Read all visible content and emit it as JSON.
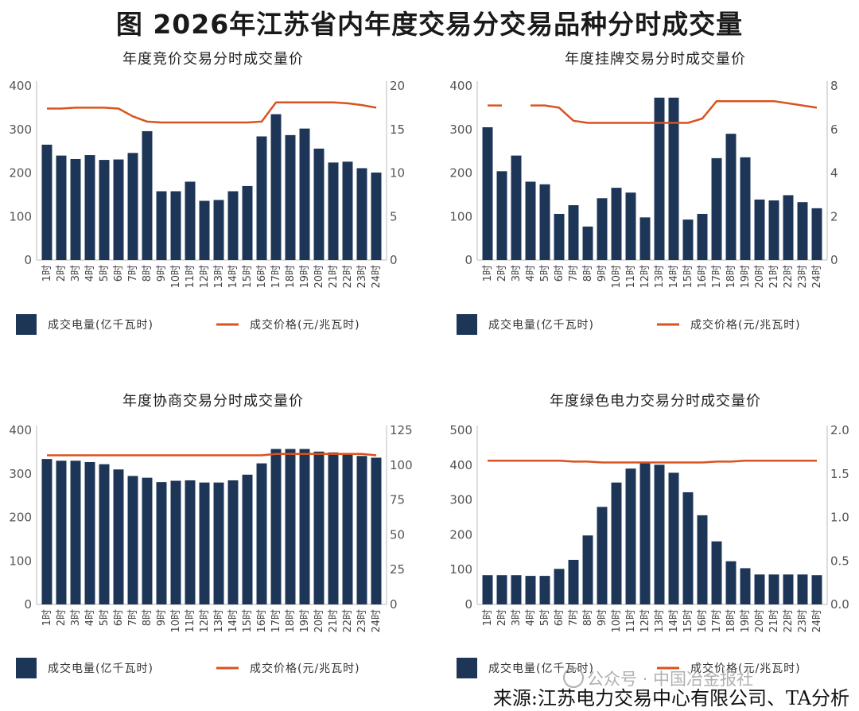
{
  "page": {
    "title": "图  2026年江苏省内年度交易分交易品种分时成交量",
    "source": "来源:江苏电力交易中心有限公司、TA分析",
    "watermark": "公众号 · 中国冶金报社"
  },
  "colors": {
    "bar": "#1d3557",
    "line": "#d9531e",
    "axis": "#bbbbbb",
    "tick": "#555555"
  },
  "legend": {
    "bar_label": "成交电量(亿千瓦时)",
    "line_label": "成交价格(元/兆瓦时)"
  },
  "chart_data": [
    {
      "type": "bar+line",
      "title": "年度竞价交易分时成交量价",
      "categories": [
        "1时",
        "2时",
        "3时",
        "4时",
        "5时",
        "6时",
        "7时",
        "8时",
        "9时",
        "10时",
        "11时",
        "12时",
        "13时",
        "14时",
        "15时",
        "16时",
        "17时",
        "18时",
        "19时",
        "20时",
        "21时",
        "22时",
        "23时",
        "24时"
      ],
      "left_axis": {
        "ylim": [
          0,
          400
        ],
        "ticks": [
          "0",
          "100",
          "200",
          "300",
          "400"
        ]
      },
      "right_axis": {
        "ylim": [
          0,
          20
        ],
        "ticks": [
          "0",
          "5",
          "10",
          "15",
          "20"
        ]
      },
      "series": [
        {
          "name": "成交电量(亿千瓦时)",
          "type": "bar",
          "axis": "left",
          "values": [
            265,
            240,
            232,
            241,
            230,
            231,
            246,
            296,
            158,
            158,
            180,
            136,
            138,
            158,
            170,
            284,
            335,
            287,
            302,
            256,
            224,
            226,
            211,
            201
          ]
        },
        {
          "name": "成交价格(元/兆瓦时)",
          "type": "line",
          "axis": "right",
          "values": [
            17.4,
            17.4,
            17.5,
            17.5,
            17.5,
            17.4,
            16.5,
            15.9,
            15.8,
            15.8,
            15.8,
            15.8,
            15.8,
            15.8,
            15.8,
            15.9,
            18.1,
            18.1,
            18.1,
            18.1,
            18.1,
            18.0,
            17.8,
            17.5
          ]
        }
      ]
    },
    {
      "type": "bar+line",
      "title": "年度挂牌交易分时成交量价",
      "categories": [
        "1时",
        "2时",
        "3时",
        "4时",
        "5时",
        "6时",
        "7时",
        "8时",
        "9时",
        "10时",
        "11时",
        "12时",
        "13时",
        "14时",
        "15时",
        "16时",
        "17时",
        "18时",
        "19时",
        "20时",
        "21时",
        "22时",
        "23时",
        "24时"
      ],
      "left_axis": {
        "ylim": [
          0,
          400
        ],
        "ticks": [
          "0",
          "100",
          "200",
          "300",
          "400"
        ]
      },
      "right_axis": {
        "ylim": [
          0,
          8
        ],
        "ticks": [
          "0",
          "2",
          "4",
          "6",
          "8"
        ]
      },
      "series": [
        {
          "name": "成交电量(亿千瓦时)",
          "type": "bar",
          "axis": "left",
          "values": [
            305,
            204,
            240,
            180,
            174,
            106,
            126,
            77,
            142,
            166,
            155,
            98,
            373,
            373,
            93,
            106,
            234,
            290,
            236,
            139,
            137,
            149,
            133,
            119
          ]
        },
        {
          "name": "成交价格(元/兆瓦时)",
          "type": "line",
          "axis": "right",
          "values": [
            7.1,
            7.1,
            null,
            7.1,
            7.1,
            7.0,
            6.4,
            6.3,
            6.3,
            6.3,
            6.3,
            6.3,
            6.3,
            6.3,
            6.3,
            6.5,
            7.3,
            7.3,
            7.3,
            7.3,
            7.3,
            7.2,
            7.1,
            7.0
          ]
        }
      ]
    },
    {
      "type": "bar+line",
      "title": "年度协商交易分时成交量价",
      "categories": [
        "1时",
        "2时",
        "3时",
        "4时",
        "5时",
        "6时",
        "7时",
        "8时",
        "9时",
        "10时",
        "11时",
        "12时",
        "13时",
        "14时",
        "15时",
        "16时",
        "17时",
        "18时",
        "19时",
        "20时",
        "21时",
        "22时",
        "23时",
        "24时"
      ],
      "left_axis": {
        "ylim": [
          0,
          400
        ],
        "ticks": [
          "0",
          "100",
          "200",
          "300",
          "400"
        ]
      },
      "right_axis": {
        "ylim": [
          0,
          125
        ],
        "ticks": [
          "0",
          "25",
          "50",
          "75",
          "100",
          "125"
        ]
      },
      "series": [
        {
          "name": "成交电量(亿千瓦时)",
          "type": "bar",
          "axis": "left",
          "values": [
            334,
            330,
            330,
            327,
            322,
            310,
            295,
            291,
            281,
            284,
            285,
            280,
            280,
            285,
            298,
            324,
            357,
            357,
            357,
            351,
            349,
            346,
            341,
            337
          ]
        },
        {
          "name": "成交价格(元/兆瓦时)",
          "type": "line",
          "axis": "right",
          "values": [
            107,
            107,
            107,
            107,
            107,
            107,
            107,
            107,
            107,
            107,
            107,
            107,
            107,
            107,
            107,
            107,
            108,
            108,
            108,
            108,
            108,
            108,
            108,
            107
          ]
        }
      ]
    },
    {
      "type": "bar+line",
      "title": "年度绿色电力交易分时成交量价",
      "categories": [
        "1时",
        "2时",
        "3时",
        "4时",
        "5时",
        "6时",
        "7时",
        "8时",
        "9时",
        "10时",
        "11时",
        "12时",
        "13时",
        "14时",
        "15时",
        "16时",
        "17时",
        "18时",
        "19时",
        "20时",
        "21时",
        "22时",
        "23时",
        "24时"
      ],
      "left_axis": {
        "ylim": [
          0,
          500
        ],
        "ticks": [
          "0",
          "100",
          "200",
          "300",
          "400",
          "500"
        ]
      },
      "right_axis": {
        "ylim": [
          0,
          2
        ],
        "ticks": [
          "0.0",
          "0.5",
          "1.0",
          "1.5",
          "2.0"
        ]
      },
      "series": [
        {
          "name": "成交电量(亿千瓦时)",
          "type": "bar",
          "axis": "left",
          "values": [
            84,
            84,
            84,
            82,
            82,
            102,
            128,
            198,
            280,
            350,
            390,
            405,
            401,
            378,
            322,
            256,
            181,
            124,
            104,
            86,
            86,
            86,
            86,
            84
          ]
        },
        {
          "name": "成交价格(元/兆瓦时)",
          "type": "line",
          "axis": "right",
          "values": [
            1.65,
            1.65,
            1.65,
            1.65,
            1.65,
            1.65,
            1.64,
            1.64,
            1.63,
            1.63,
            1.63,
            1.63,
            1.63,
            1.63,
            1.63,
            1.63,
            1.64,
            1.64,
            1.65,
            1.65,
            1.65,
            1.65,
            1.65,
            1.65
          ]
        }
      ]
    }
  ]
}
